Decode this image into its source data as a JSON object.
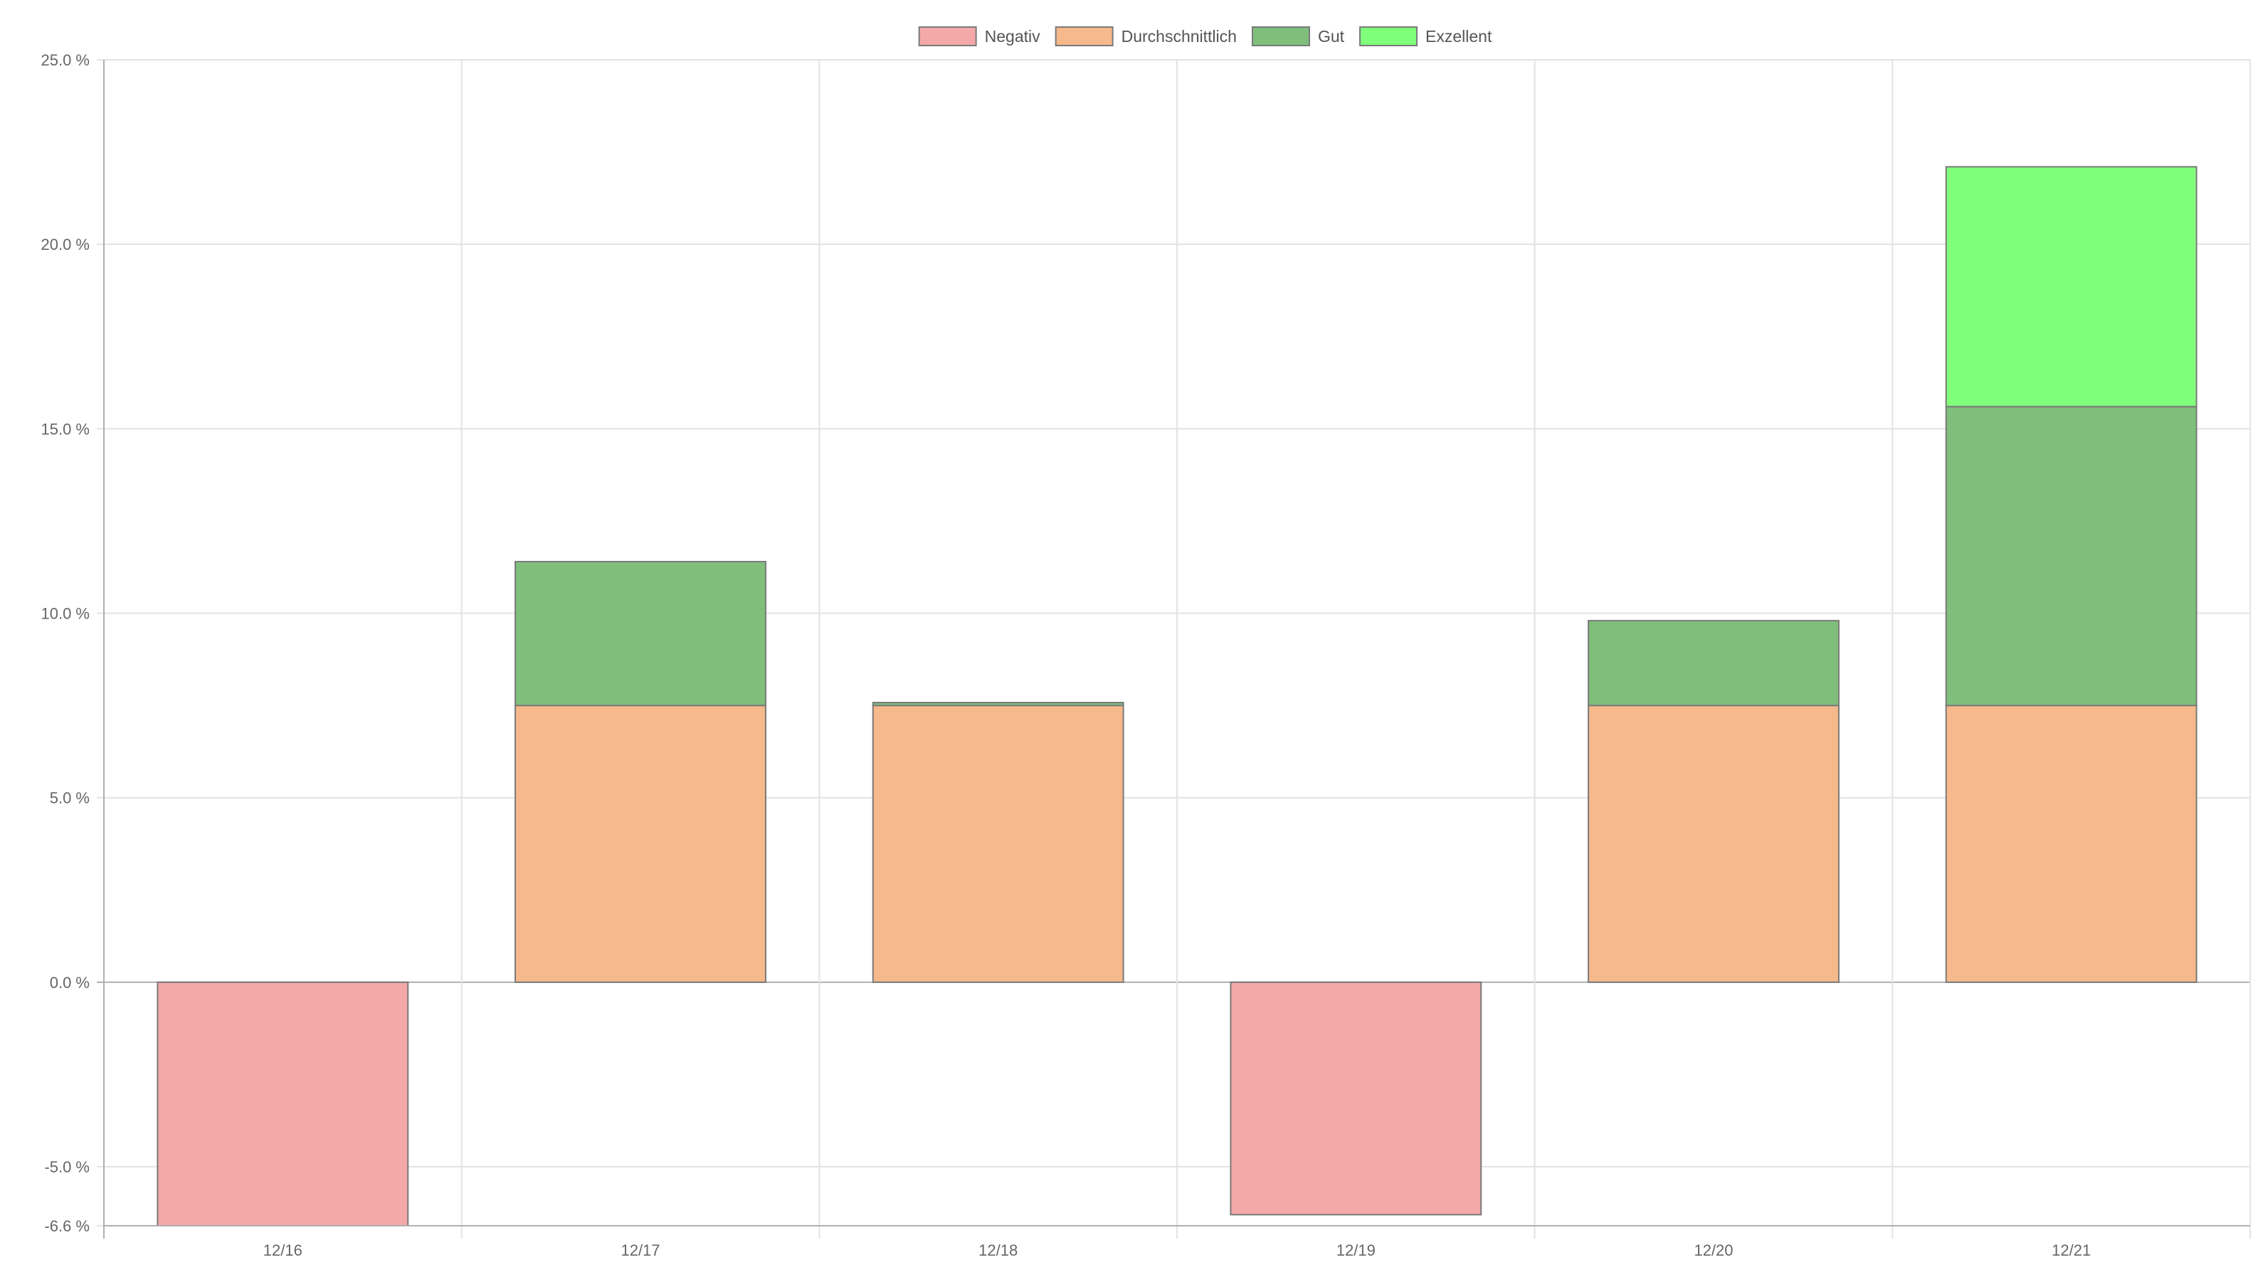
{
  "chart_data": {
    "type": "bar",
    "stacked": true,
    "categories": [
      "12/16",
      "12/17",
      "12/18",
      "12/19",
      "12/20",
      "12/21"
    ],
    "series": [
      {
        "name": "Negativ",
        "color": "#f4a8a8",
        "values": [
          -6.6,
          0,
          0,
          -6.3,
          0,
          0
        ]
      },
      {
        "name": "Durchschnittlich",
        "color": "#f6b98b",
        "values": [
          0,
          7.5,
          7.5,
          0,
          7.5,
          7.5
        ]
      },
      {
        "name": "Gut",
        "color": "#7fbf7b",
        "values": [
          0,
          3.9,
          0.08,
          0,
          2.3,
          8.1
        ]
      },
      {
        "name": "Exzellent",
        "color": "#80ff7a",
        "values": [
          0,
          0,
          0,
          0,
          0,
          6.5
        ]
      }
    ],
    "ylim": [
      -6.6,
      25
    ],
    "yticks": [
      25,
      20,
      15,
      10,
      5,
      0,
      -5,
      -6.6
    ],
    "ytick_labels": [
      "25.0 %",
      "20.0 %",
      "15.0 %",
      "10.0 %",
      "5.0 %",
      "0.0 %",
      "-5.0 %",
      "-6.6 %"
    ],
    "grid": true,
    "legend_position": "top-center",
    "bar_border_color": "#7a7a7a",
    "grid_color": "#e3e3e3",
    "axis_color": "#b0b0b0"
  }
}
